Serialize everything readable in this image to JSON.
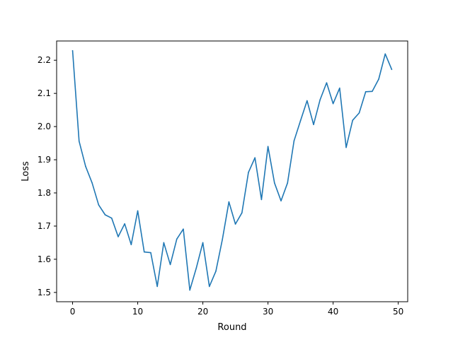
{
  "chart_data": {
    "type": "line",
    "title": "",
    "xlabel": "Round",
    "ylabel": "Loss",
    "xlim": [
      -2.45,
      51.45
    ],
    "ylim": [
      1.472,
      2.258
    ],
    "xticks": [
      0,
      10,
      20,
      30,
      40,
      50
    ],
    "yticks": [
      1.5,
      1.6,
      1.7,
      1.8,
      1.9,
      2.0,
      2.1,
      2.2
    ],
    "xtick_labels": [
      "0",
      "10",
      "20",
      "30",
      "40",
      "50"
    ],
    "ytick_labels": [
      "1.5",
      "1.6",
      "1.7",
      "1.8",
      "1.9",
      "2.0",
      "2.1",
      "2.2"
    ],
    "grid": false,
    "series": [
      {
        "color": "#1f77b4",
        "x": [
          0,
          1,
          2,
          3,
          4,
          5,
          6,
          7,
          8,
          9,
          10,
          11,
          12,
          13,
          14,
          15,
          16,
          17,
          18,
          19,
          20,
          21,
          22,
          23,
          24,
          25,
          26,
          27,
          28,
          29,
          30,
          31,
          32,
          33,
          34,
          35,
          36,
          37,
          38,
          39,
          40,
          41,
          42,
          43,
          44,
          45,
          46,
          47,
          48,
          49
        ],
        "values": [
          2.229,
          1.956,
          1.88,
          1.83,
          1.764,
          1.734,
          1.724,
          1.668,
          1.707,
          1.644,
          1.746,
          1.622,
          1.62,
          1.518,
          1.65,
          1.584,
          1.661,
          1.691,
          1.507,
          1.574,
          1.65,
          1.518,
          1.564,
          1.66,
          1.773,
          1.706,
          1.74,
          1.862,
          1.906,
          1.78,
          1.94,
          1.83,
          1.776,
          1.83,
          1.957,
          2.018,
          2.078,
          2.006,
          2.081,
          2.132,
          2.069,
          2.116,
          1.937,
          2.019,
          2.041,
          2.105,
          2.106,
          2.143,
          2.219,
          2.172
        ]
      }
    ]
  }
}
